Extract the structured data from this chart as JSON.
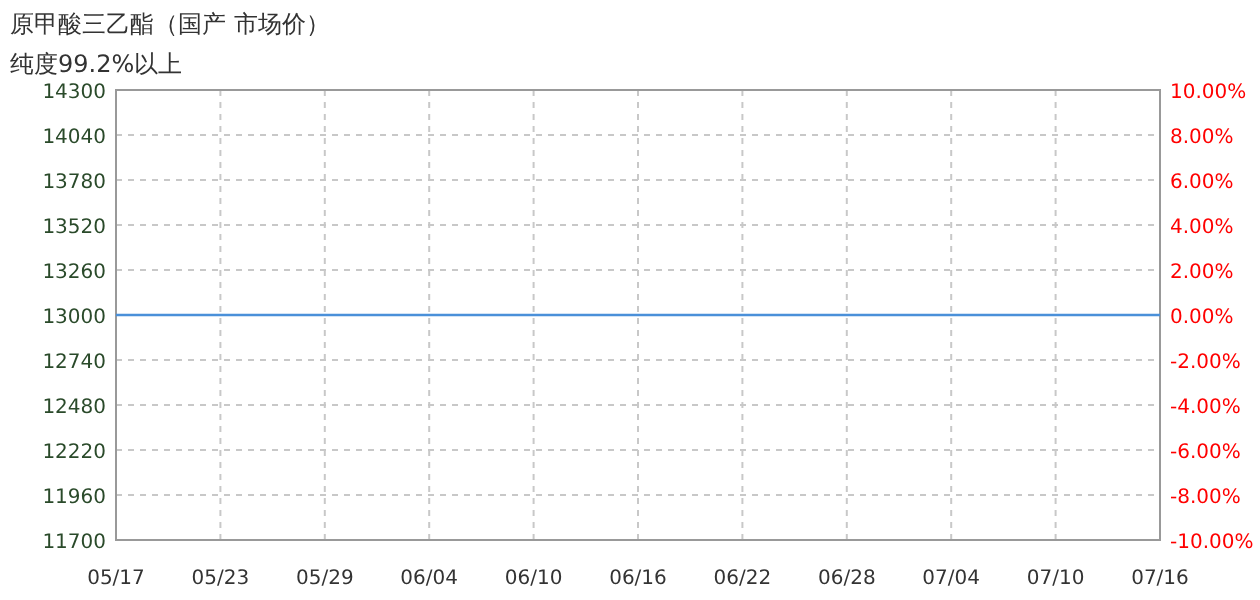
{
  "chart_data": {
    "type": "line",
    "title": "原甲酸三乙酯（国产 市场价）",
    "subtitle": "纯度99.2%以上",
    "series": [
      {
        "color": "#4a90d9",
        "x": [
          "--05-17",
          "--07-16"
        ],
        "values": [
          13000,
          13000
        ]
      }
    ],
    "xlim": [
      "--05-17",
      "--07-16"
    ],
    "xticks": [
      {
        "value": "--05-17",
        "label": "05/17"
      },
      {
        "value": "--05-23",
        "label": "05/23"
      },
      {
        "value": "--05-29",
        "label": "05/29"
      },
      {
        "value": "--06-04",
        "label": "06/04"
      },
      {
        "value": "--06-10",
        "label": "06/10"
      },
      {
        "value": "--06-16",
        "label": "06/16"
      },
      {
        "value": "--06-22",
        "label": "06/22"
      },
      {
        "value": "--06-28",
        "label": "06/28"
      },
      {
        "value": "--07-04",
        "label": "07/04"
      },
      {
        "value": "--07-10",
        "label": "07/10"
      },
      {
        "value": "--07-16",
        "label": "07/16"
      }
    ],
    "ylim": [
      11700,
      14300
    ],
    "yticks": [
      11700,
      11960,
      12220,
      12480,
      12740,
      13000,
      13260,
      13520,
      13780,
      14040,
      14300
    ],
    "y2lim": [
      -10,
      10
    ],
    "y2ticks": [
      {
        "value": -10,
        "label": "-10.00%"
      },
      {
        "value": -8,
        "label": "-8.00%"
      },
      {
        "value": -6,
        "label": "-6.00%"
      },
      {
        "value": -4,
        "label": "-4.00%"
      },
      {
        "value": -2,
        "label": "-2.00%"
      },
      {
        "value": 0,
        "label": "0.00%"
      },
      {
        "value": 2,
        "label": "2.00%"
      },
      {
        "value": 4,
        "label": "4.00%"
      },
      {
        "value": 6,
        "label": "6.00%"
      },
      {
        "value": 8,
        "label": "8.00%"
      },
      {
        "value": 10,
        "label": "10.00%"
      }
    ],
    "grid": true
  }
}
